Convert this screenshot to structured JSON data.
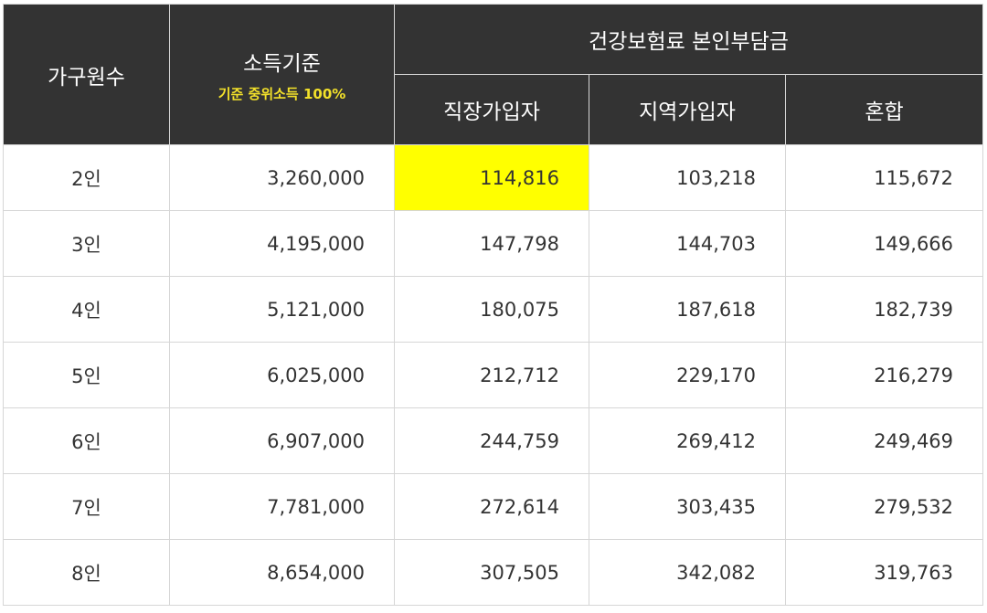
{
  "table": {
    "headers": {
      "household": "가구원수",
      "income": "소득기준",
      "income_sub": "기준 중위소득 100%",
      "premium_group": "건강보험료 본인부담금",
      "workplace": "직장가입자",
      "regional": "지역가입자",
      "mixed": "혼합"
    },
    "highlight_color": "#ffff00",
    "header_bg": "#333333",
    "rows": [
      {
        "people": "2인",
        "income": "3,260,000",
        "workplace": "114,816",
        "regional": "103,218",
        "mixed": "115,672"
      },
      {
        "people": "3인",
        "income": "4,195,000",
        "workplace": "147,798",
        "regional": "144,703",
        "mixed": "149,666"
      },
      {
        "people": "4인",
        "income": "5,121,000",
        "workplace": "180,075",
        "regional": "187,618",
        "mixed": "182,739"
      },
      {
        "people": "5인",
        "income": "6,025,000",
        "workplace": "212,712",
        "regional": "229,170",
        "mixed": "216,279"
      },
      {
        "people": "6인",
        "income": "6,907,000",
        "workplace": "244,759",
        "regional": "269,412",
        "mixed": "249,469"
      },
      {
        "people": "7인",
        "income": "7,781,000",
        "workplace": "272,614",
        "regional": "303,435",
        "mixed": "279,532"
      },
      {
        "people": "8인",
        "income": "8,654,000",
        "workplace": "307,505",
        "regional": "342,082",
        "mixed": "319,763"
      }
    ]
  }
}
